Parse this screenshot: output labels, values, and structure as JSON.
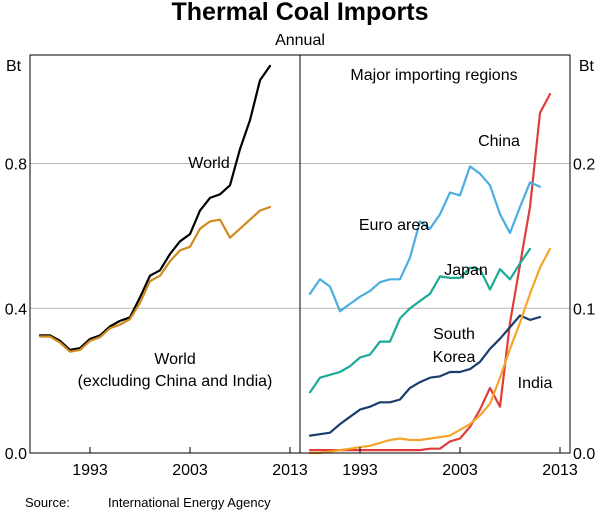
{
  "chart_data": {
    "type": "line",
    "title": "Thermal Coal Imports",
    "subtitle": "Annual",
    "source_label": "Source:",
    "source_text": "International Energy Agency",
    "x": [
      1988,
      1989,
      1990,
      1991,
      1992,
      1993,
      1994,
      1995,
      1996,
      1997,
      1998,
      1999,
      2000,
      2001,
      2002,
      2003,
      2004,
      2005,
      2006,
      2007,
      2008,
      2009,
      2010,
      2011,
      2012,
      2013
    ],
    "x_ticks": [
      "1993",
      "2003",
      "2013"
    ],
    "panels": [
      {
        "name": "world",
        "panel_title": "",
        "unit_left": "Bt",
        "unit_right": "",
        "ylim": [
          0,
          1.1
        ],
        "y_ticks": [
          {
            "value": 0,
            "label": "0.0"
          },
          {
            "value": 0.4,
            "label": "0.4"
          },
          {
            "value": 0.8,
            "label": "0.8"
          }
        ],
        "series": [
          {
            "name": "World",
            "label": "World",
            "color": "#000000",
            "values": [
              0.325,
              0.325,
              0.31,
              0.285,
              0.29,
              0.315,
              0.325,
              0.35,
              0.365,
              0.375,
              0.43,
              0.49,
              0.505,
              0.55,
              0.585,
              0.605,
              0.67,
              0.705,
              0.715,
              0.74,
              0.84,
              0.92,
              1.03,
              1.07,
              null,
              null
            ]
          },
          {
            "name": "World (excluding China and India)",
            "label_line1": "World",
            "label_line2": "(excluding China and India)",
            "color": "#D08A1E",
            "values": [
              0.322,
              0.322,
              0.305,
              0.28,
              0.285,
              0.31,
              0.32,
              0.345,
              0.355,
              0.37,
              0.415,
              0.475,
              0.49,
              0.53,
              0.56,
              0.57,
              0.62,
              0.64,
              0.645,
              0.595,
              0.62,
              0.645,
              0.67,
              0.68,
              null,
              null
            ]
          }
        ]
      },
      {
        "name": "regions",
        "panel_title": "Major importing regions",
        "unit_left": "",
        "unit_right": "Bt",
        "ylim": [
          0,
          0.275
        ],
        "y_ticks": [
          {
            "value": 0,
            "label": "0.0"
          },
          {
            "value": 0.1,
            "label": "0.1"
          },
          {
            "value": 0.2,
            "label": "0.2"
          }
        ],
        "series": [
          {
            "name": "China",
            "label": "China",
            "color": "#E03C3C",
            "values": [
              0.002,
              0.002,
              0.002,
              0.002,
              0.002,
              0.002,
              0.002,
              0.002,
              0.002,
              0.002,
              0.002,
              0.002,
              0.003,
              0.003,
              0.008,
              0.01,
              0.018,
              0.03,
              0.045,
              0.032,
              0.09,
              0.13,
              0.17,
              0.235,
              0.248,
              null
            ]
          },
          {
            "name": "Euro area",
            "label": "Euro area",
            "color": "#4AAEE0",
            "values": [
              0.11,
              0.12,
              0.115,
              0.098,
              0.103,
              0.108,
              0.112,
              0.118,
              0.12,
              0.12,
              0.135,
              0.16,
              0.155,
              0.165,
              0.18,
              0.178,
              0.198,
              0.193,
              0.185,
              0.165,
              0.152,
              0.17,
              0.187,
              0.184,
              null,
              null
            ]
          },
          {
            "name": "Japan",
            "label": "Japan",
            "color": "#1AAA96",
            "values": [
              0.042,
              0.052,
              0.054,
              0.056,
              0.06,
              0.066,
              0.068,
              0.077,
              0.077,
              0.093,
              0.1,
              0.105,
              0.11,
              0.122,
              0.121,
              0.121,
              0.128,
              0.127,
              0.113,
              0.127,
              0.12,
              0.131,
              0.141,
              null,
              null,
              null
            ]
          },
          {
            "name": "South Korea",
            "label_line1": "South",
            "label_line2": "Korea",
            "color": "#1A3D6E",
            "values": [
              0.012,
              0.013,
              0.014,
              0.02,
              0.025,
              0.03,
              0.032,
              0.035,
              0.035,
              0.037,
              0.045,
              0.049,
              0.052,
              0.053,
              0.056,
              0.056,
              0.058,
              0.063,
              0.072,
              0.079,
              0.087,
              0.095,
              0.092,
              0.094,
              null,
              null
            ]
          },
          {
            "name": "India",
            "label": "India",
            "color": "#F5A62A",
            "values": [
              0.0,
              0.0,
              0.001,
              0.002,
              0.003,
              0.004,
              0.005,
              0.007,
              0.009,
              0.01,
              0.009,
              0.009,
              0.01,
              0.011,
              0.012,
              0.016,
              0.02,
              0.026,
              0.034,
              0.052,
              0.072,
              0.09,
              0.11,
              0.128,
              0.141,
              null
            ]
          }
        ]
      }
    ]
  }
}
